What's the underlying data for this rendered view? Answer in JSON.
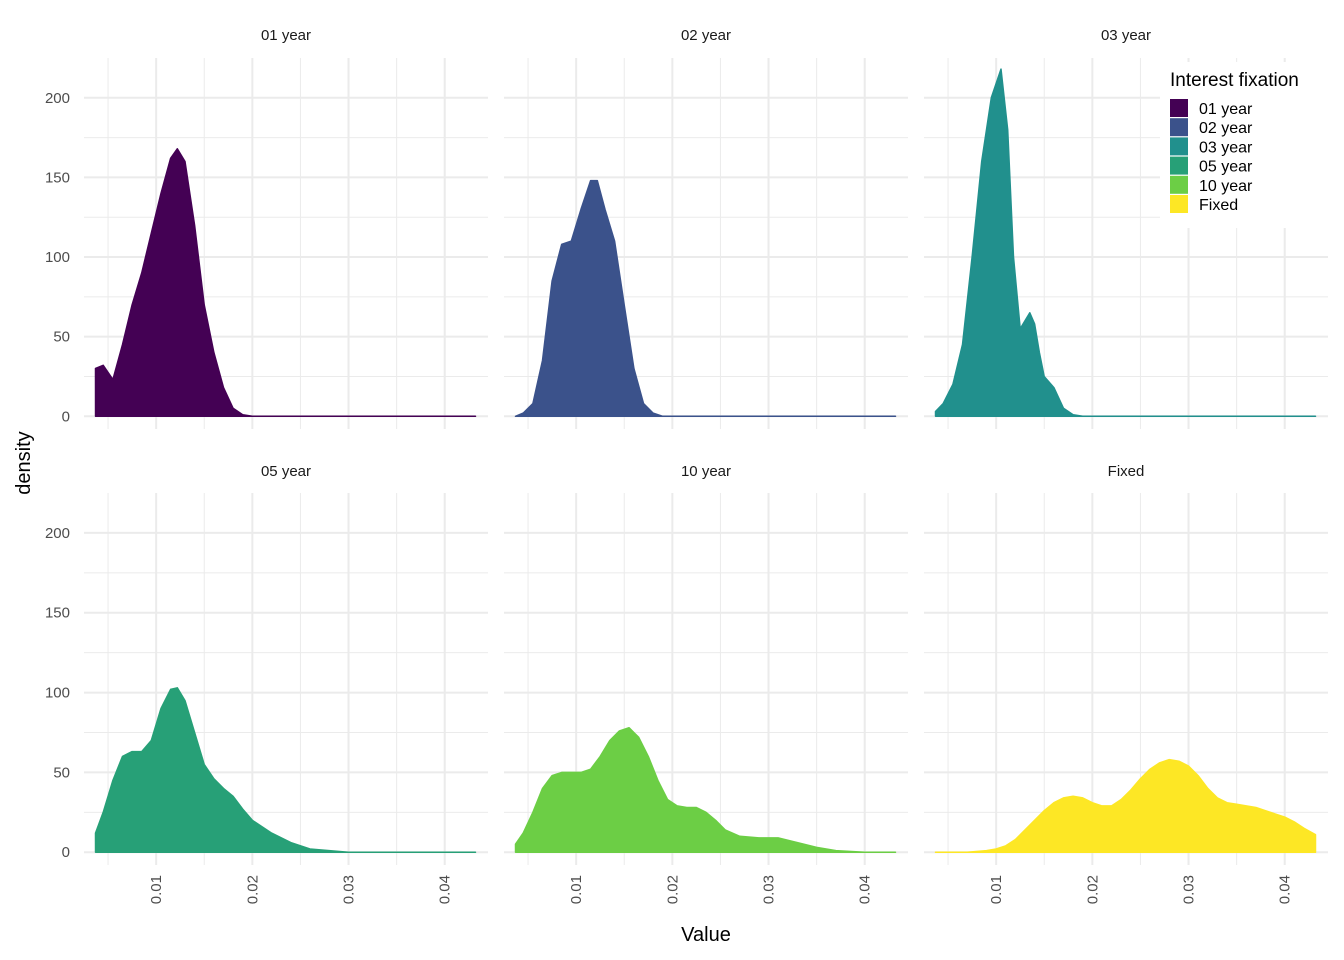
{
  "chart_data": {
    "type": "area",
    "subtype": "faceted density",
    "xlabel": "Value",
    "ylabel": "density",
    "xlim": [
      0.0025,
      0.0445
    ],
    "ylim": [
      -8,
      225
    ],
    "x_ticks": [
      0.01,
      0.02,
      0.03,
      0.04
    ],
    "x_tick_labels": [
      "0.01",
      "0.02",
      "0.03",
      "0.04"
    ],
    "y_ticks": [
      0,
      50,
      100,
      150,
      200
    ],
    "y_tick_labels": [
      "0",
      "50",
      "100",
      "150",
      "200"
    ],
    "grid": true,
    "legend": {
      "title": "Interest fixation",
      "position": "top-right"
    },
    "series": [
      {
        "name": "01 year",
        "color": "#440154",
        "x": [
          0.0037,
          0.0045,
          0.0055,
          0.0065,
          0.0075,
          0.0085,
          0.0095,
          0.0105,
          0.0115,
          0.0122,
          0.013,
          0.014,
          0.015,
          0.016,
          0.017,
          0.018,
          0.019,
          0.02,
          0.025,
          0.03,
          0.035,
          0.04,
          0.0432
        ],
        "y": [
          30,
          32,
          23,
          45,
          70,
          90,
          115,
          140,
          162,
          168,
          160,
          120,
          70,
          40,
          18,
          5,
          1,
          0,
          0,
          0,
          0,
          0,
          0
        ]
      },
      {
        "name": "02 year",
        "color": "#3b528b",
        "x": [
          0.0037,
          0.0045,
          0.0055,
          0.0065,
          0.0075,
          0.0085,
          0.0095,
          0.0105,
          0.0115,
          0.0122,
          0.013,
          0.014,
          0.015,
          0.016,
          0.017,
          0.018,
          0.019,
          0.02,
          0.025,
          0.03,
          0.035,
          0.04,
          0.0432
        ],
        "y": [
          0,
          2,
          8,
          35,
          85,
          108,
          110,
          130,
          148,
          148,
          130,
          110,
          70,
          30,
          8,
          2,
          0,
          0,
          0,
          0,
          0,
          0,
          0
        ]
      },
      {
        "name": "03 year",
        "color": "#21908d",
        "x": [
          0.0037,
          0.0045,
          0.0055,
          0.0065,
          0.0075,
          0.0085,
          0.0095,
          0.0105,
          0.0112,
          0.0118,
          0.0125,
          0.013,
          0.0135,
          0.014,
          0.0145,
          0.015,
          0.016,
          0.017,
          0.018,
          0.019,
          0.02,
          0.025,
          0.03,
          0.035,
          0.04,
          0.0432
        ],
        "y": [
          3,
          8,
          20,
          45,
          100,
          160,
          200,
          218,
          180,
          100,
          55,
          60,
          65,
          58,
          40,
          25,
          18,
          5,
          1,
          0,
          0,
          0,
          0,
          0,
          0,
          0
        ]
      },
      {
        "name": "05 year",
        "color": "#27a077",
        "x": [
          0.0037,
          0.0045,
          0.0055,
          0.0065,
          0.0075,
          0.0085,
          0.0095,
          0.0105,
          0.0115,
          0.0122,
          0.013,
          0.014,
          0.015,
          0.016,
          0.017,
          0.018,
          0.019,
          0.02,
          0.022,
          0.024,
          0.026,
          0.028,
          0.03,
          0.035,
          0.04,
          0.0432
        ],
        "y": [
          12,
          25,
          45,
          60,
          63,
          63,
          70,
          90,
          102,
          103,
          95,
          75,
          55,
          46,
          40,
          35,
          27,
          20,
          12,
          6,
          2,
          1,
          0,
          0,
          0,
          0
        ]
      },
      {
        "name": "10 year",
        "color": "#6cce45",
        "x": [
          0.0037,
          0.0045,
          0.0055,
          0.0065,
          0.0075,
          0.0085,
          0.0095,
          0.0105,
          0.0115,
          0.0125,
          0.0135,
          0.0145,
          0.0155,
          0.0165,
          0.0175,
          0.0185,
          0.0195,
          0.0205,
          0.0215,
          0.0225,
          0.0235,
          0.0245,
          0.0255,
          0.027,
          0.029,
          0.031,
          0.033,
          0.035,
          0.037,
          0.04,
          0.0432
        ],
        "y": [
          5,
          12,
          25,
          40,
          48,
          50,
          50,
          50,
          52,
          60,
          70,
          76,
          78,
          72,
          60,
          45,
          33,
          29,
          28,
          28,
          25,
          20,
          14,
          10,
          9,
          9,
          6,
          3,
          1,
          0,
          0
        ]
      },
      {
        "name": "Fixed",
        "color": "#fde725",
        "x": [
          0.0037,
          0.005,
          0.007,
          0.009,
          0.01,
          0.011,
          0.012,
          0.013,
          0.014,
          0.015,
          0.016,
          0.017,
          0.018,
          0.019,
          0.02,
          0.021,
          0.022,
          0.023,
          0.024,
          0.025,
          0.026,
          0.027,
          0.028,
          0.029,
          0.03,
          0.031,
          0.032,
          0.033,
          0.034,
          0.035,
          0.036,
          0.037,
          0.038,
          0.039,
          0.04,
          0.041,
          0.042,
          0.0432
        ],
        "y": [
          0,
          0,
          0,
          1,
          2,
          4,
          8,
          14,
          20,
          26,
          31,
          34,
          35,
          34,
          31,
          29,
          29,
          33,
          39,
          46,
          52,
          56,
          58,
          57,
          54,
          48,
          40,
          34,
          31,
          30,
          29,
          28,
          26,
          24,
          22,
          19,
          15,
          11
        ]
      }
    ]
  }
}
